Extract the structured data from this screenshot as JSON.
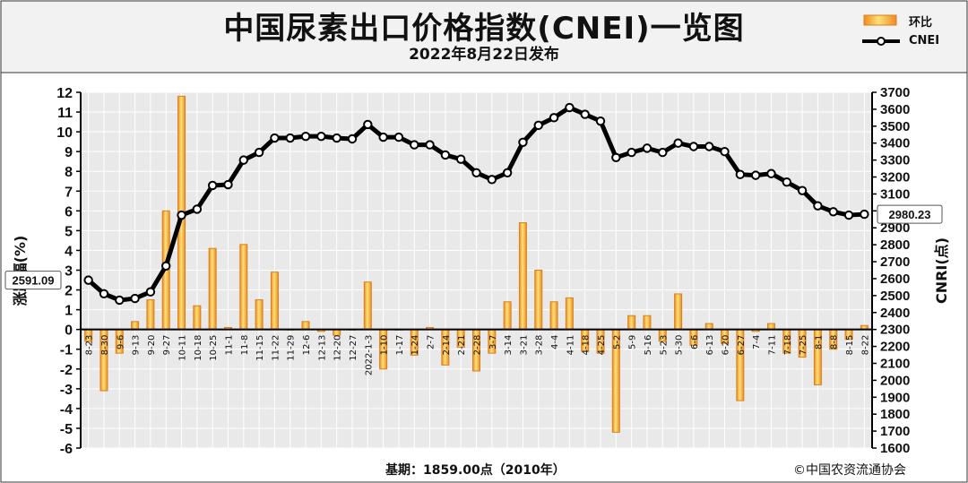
{
  "title": "中国尿素出口价格指数(CNEI)一览图",
  "subtitle": "2022年8月22日发布",
  "legend": [
    {
      "label": "环比",
      "type": "bar",
      "color": "#F0A030"
    },
    {
      "label": "CNEI",
      "type": "line",
      "color": "#000000"
    }
  ],
  "footer_left": "基期：1859.00点（2010年）",
  "footer_right": "©中国农资流通协会",
  "chart_data": {
    "type": "bar+line",
    "categories": [
      "8-23",
      "8-30",
      "9-6",
      "9-13",
      "9-20",
      "9-27",
      "10-11",
      "10-18",
      "10-25",
      "11-1",
      "11-8",
      "11-15",
      "11-22",
      "11-29",
      "12-6",
      "12-13",
      "12-20",
      "12-27",
      "2022-1-3",
      "1-10",
      "1-17",
      "1-24",
      "2-7",
      "2-14",
      "2-21",
      "2-28",
      "3-7",
      "3-14",
      "3-21",
      "3-28",
      "4-4",
      "4-11",
      "4-18",
      "4-25",
      "5-2",
      "5-9",
      "5-16",
      "5-23",
      "5-30",
      "6-6",
      "6-13",
      "6-20",
      "6-27",
      "7-4",
      "7-11",
      "7-18",
      "7-25",
      "8-1",
      "8-8",
      "8-15",
      "8-22"
    ],
    "series": [
      {
        "name": "环比",
        "axis": "left",
        "type": "bar",
        "values": [
          -0.6,
          -3.1,
          -1.2,
          0.4,
          1.5,
          6.0,
          11.8,
          1.2,
          4.1,
          0.1,
          4.3,
          1.5,
          2.9,
          0.0,
          0.4,
          -0.1,
          -0.3,
          0.0,
          2.4,
          -2.0,
          0.0,
          -1.3,
          0.1,
          -1.8,
          -0.9,
          -2.1,
          -1.2,
          1.4,
          5.4,
          3.0,
          1.4,
          1.6,
          -1.1,
          -1.2,
          -5.2,
          0.7,
          0.7,
          -0.6,
          1.8,
          -0.8,
          0.3,
          -0.7,
          -3.6,
          -0.1,
          0.3,
          -1.2,
          -1.4,
          -2.8,
          -1.0,
          -0.5,
          0.2
        ]
      },
      {
        "name": "CNEI",
        "axis": "right",
        "type": "line",
        "values": [
          2591.09,
          2511,
          2473,
          2483,
          2522,
          2675,
          2975,
          3010,
          3150,
          3155,
          3300,
          3345,
          3430,
          3430,
          3440,
          3440,
          3430,
          3425,
          3510,
          3435,
          3435,
          3390,
          3390,
          3330,
          3305,
          3225,
          3185,
          3225,
          3405,
          3505,
          3550,
          3610,
          3570,
          3530,
          3315,
          3345,
          3370,
          3345,
          3400,
          3380,
          3380,
          3350,
          3215,
          3210,
          3220,
          3170,
          3120,
          3030,
          2995,
          2975,
          2980.23
        ]
      }
    ],
    "ylim_left": [
      -6,
      12
    ],
    "ylim_right": [
      1600,
      3700
    ],
    "ylabel_left": "涨跌幅(%)",
    "ylabel_right": "CNRI(点)",
    "yticks_left": [
      -6,
      -5,
      -4,
      -3,
      -2,
      -1,
      0,
      1,
      2,
      3,
      4,
      5,
      6,
      7,
      8,
      9,
      10,
      11,
      12
    ],
    "yticks_right": [
      1600,
      1700,
      1800,
      1900,
      2000,
      2100,
      2200,
      2300,
      2400,
      2500,
      2600,
      2700,
      2800,
      2900,
      3000,
      3100,
      3200,
      3300,
      3400,
      3500,
      3600,
      3700
    ],
    "annotations": [
      {
        "text": "2591.09",
        "at": "first"
      },
      {
        "text": "2980.23",
        "at": "last"
      }
    ],
    "grid": true
  },
  "colors": {
    "header_bg": "#F2F2F2",
    "plot_bg": "#E9E9E9",
    "bar_fill": "#F4D060",
    "bar_edge": "#D88020",
    "line": "#000000",
    "marker_fill": "#FFFFFF"
  }
}
